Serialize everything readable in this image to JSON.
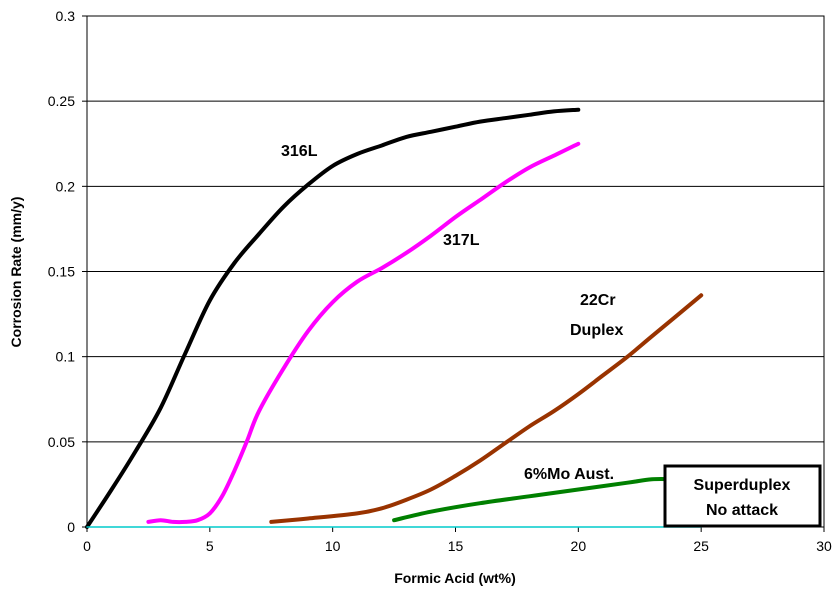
{
  "chart_data": {
    "type": "line",
    "title": "",
    "xlabel": "Formic Acid (wt%)",
    "ylabel": "Corrosion Rate (mm/y)",
    "xlim": [
      0,
      30
    ],
    "ylim": [
      0,
      0.3
    ],
    "xticks": [
      0,
      5,
      10,
      15,
      20,
      25,
      30
    ],
    "yticks": [
      0,
      0.05,
      0.1,
      0.15,
      0.2,
      0.25,
      0.3
    ],
    "ytick_labels": [
      "0",
      "0.05",
      "0.1",
      "0.15",
      "0.2",
      "0.25",
      "0.3"
    ],
    "grid": "horizontal",
    "legend": "none",
    "series": [
      {
        "name": "316L",
        "color": "#000000",
        "x": [
          0,
          1,
          2,
          3,
          4,
          5,
          6,
          7,
          8,
          9,
          10,
          11,
          12,
          13,
          14,
          15,
          16,
          17,
          18,
          19,
          20
        ],
        "y": [
          0,
          0.022,
          0.045,
          0.07,
          0.102,
          0.133,
          0.155,
          0.172,
          0.188,
          0.201,
          0.212,
          0.219,
          0.224,
          0.229,
          0.232,
          0.235,
          0.238,
          0.24,
          0.242,
          0.244,
          0.245
        ]
      },
      {
        "name": "317L",
        "color": "#ff00ff",
        "x": [
          2.5,
          3,
          3.5,
          4,
          4.5,
          5,
          5.5,
          6,
          6.5,
          7,
          8,
          9,
          10,
          11,
          12,
          13,
          14,
          15,
          16,
          17,
          18,
          19,
          20
        ],
        "y": [
          0.003,
          0.004,
          0.003,
          0.003,
          0.004,
          0.008,
          0.018,
          0.033,
          0.05,
          0.068,
          0.093,
          0.115,
          0.132,
          0.144,
          0.152,
          0.161,
          0.171,
          0.182,
          0.192,
          0.202,
          0.211,
          0.218,
          0.225
        ]
      },
      {
        "name": "22Cr Duplex",
        "color": "#993300",
        "x": [
          7.5,
          9,
          11,
          12,
          13,
          14,
          15,
          16,
          17,
          18,
          19,
          20,
          21,
          22,
          23,
          24,
          25
        ],
        "y": [
          0.003,
          0.005,
          0.008,
          0.011,
          0.016,
          0.022,
          0.03,
          0.039,
          0.049,
          0.059,
          0.068,
          0.078,
          0.089,
          0.1,
          0.112,
          0.124,
          0.136
        ]
      },
      {
        "name": "6%Mo Aust.",
        "color": "#008000",
        "x": [
          12.5,
          14,
          16,
          18,
          20,
          22,
          23,
          24
        ],
        "y": [
          0.004,
          0.009,
          0.014,
          0.018,
          0.022,
          0.026,
          0.028,
          0.028
        ]
      },
      {
        "name": "Superduplex",
        "color": "#00cccc",
        "x": [
          0,
          25
        ],
        "y": [
          0,
          0
        ]
      }
    ],
    "annotations": [
      {
        "text": "316L",
        "series": "316L"
      },
      {
        "text": "317L",
        "series": "317L"
      },
      {
        "text": "22Cr",
        "series": "22Cr Duplex"
      },
      {
        "text": "Duplex",
        "series": "22Cr Duplex"
      },
      {
        "text": "6%Mo Aust.",
        "series": "6%Mo Aust."
      }
    ],
    "boxed_note": {
      "line1": "Superduplex",
      "line2": "No attack"
    }
  }
}
